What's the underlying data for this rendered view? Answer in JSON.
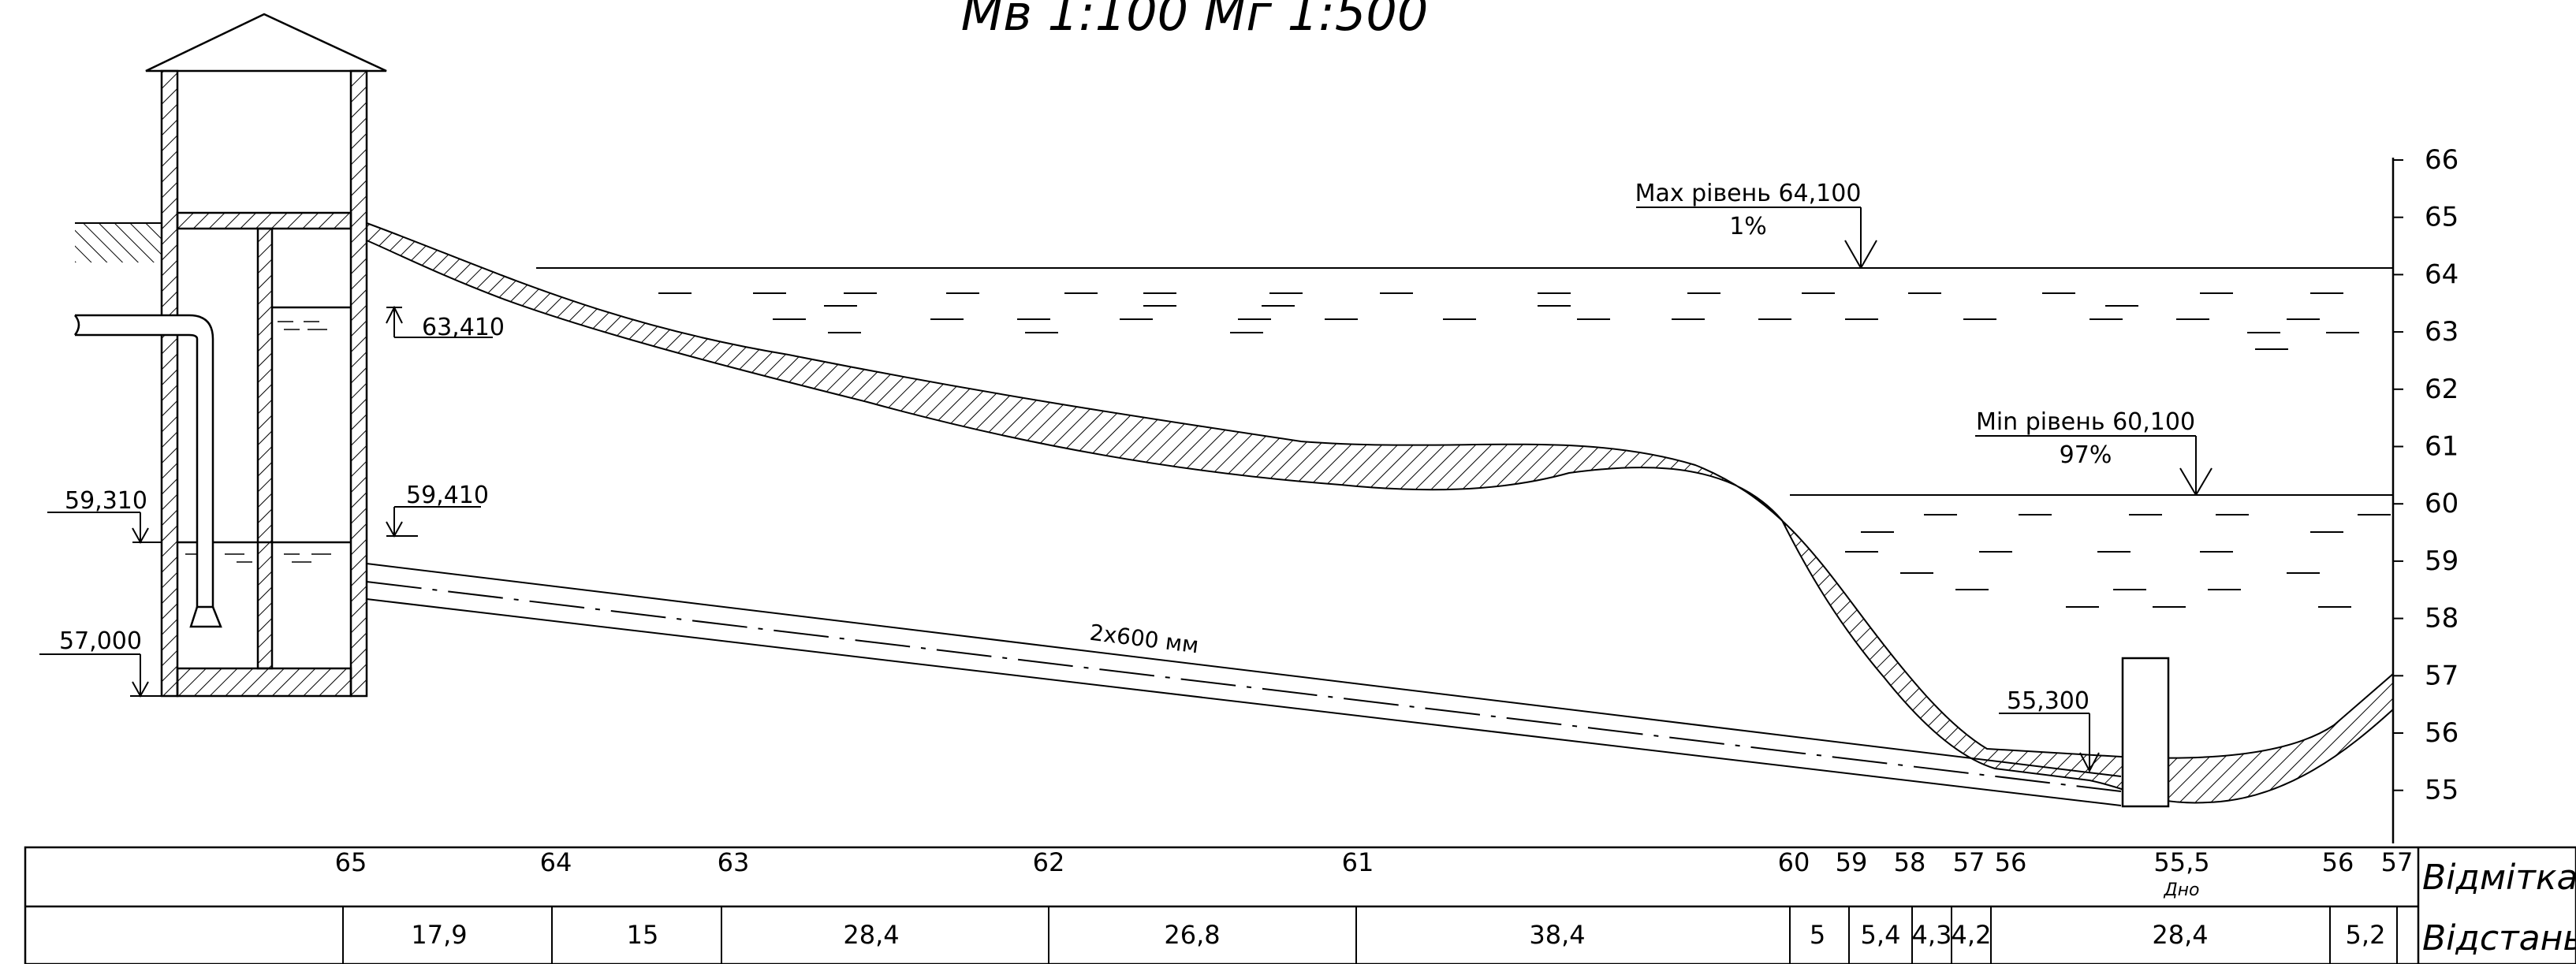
{
  "title": "Мв 1:100 Мг 1:500",
  "scale": {
    "ticks": [
      "66",
      "65",
      "64",
      "63",
      "62",
      "61",
      "60",
      "59",
      "58",
      "57",
      "56",
      "55"
    ]
  },
  "levels": {
    "max": {
      "label": "Max рівень 64,100",
      "percent": "1%"
    },
    "min": {
      "label": "Min рівень 60,100",
      "percent": "97%"
    }
  },
  "marks": {
    "m63410": "63,410",
    "m59410": "59,410",
    "m59310": "59,310",
    "m57000": "57,000",
    "m55300": "55,300"
  },
  "pipe_label": "2x600 мм",
  "table": {
    "row1_label": "Відмітка",
    "row2_label": "Відстань",
    "elevations": [
      "65",
      "64",
      "63",
      "62",
      "61",
      "60",
      "59",
      "58",
      "57",
      "56",
      "55,5",
      "56",
      "57"
    ],
    "bottom_note": "Дно",
    "distances": [
      "17,9",
      "15",
      "28,4",
      "26,8",
      "38,4",
      "5",
      "5,4",
      "4,3",
      "4,2",
      "28,4",
      "5,2"
    ]
  },
  "colors": {
    "line": "#000000",
    "background": "#ffffff"
  }
}
